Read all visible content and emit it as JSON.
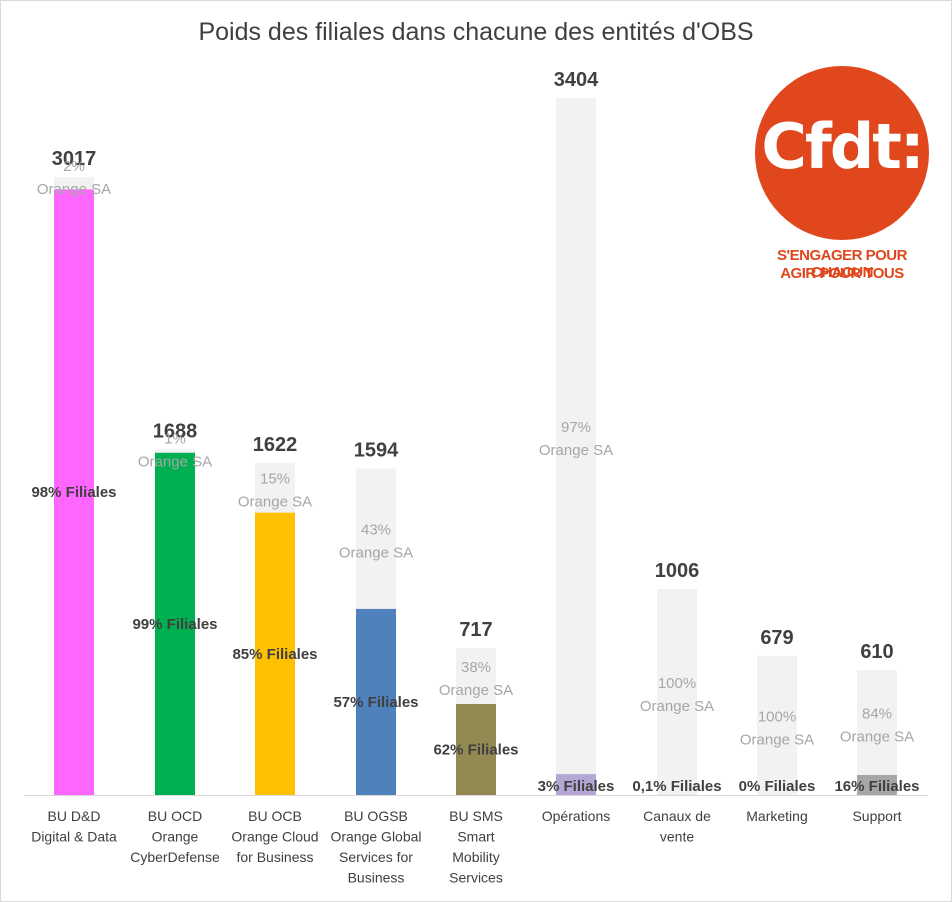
{
  "chart_data": {
    "type": "bar",
    "stacked": true,
    "title": "Poids des filiales dans chacune des entités d'OBS",
    "ylim": [
      0,
      3600
    ],
    "grid": false,
    "legend": "none",
    "bars": [
      {
        "category": [
          "BU D&D",
          "Digital & Data"
        ],
        "total": 3017,
        "total_label": "3017",
        "filiales_pct": 98,
        "filiales_label": "98% Filiales",
        "orange_label": [
          "2%",
          "Orange SA"
        ],
        "color": "#ff66ff"
      },
      {
        "category": [
          "BU OCD",
          "Orange",
          "CyberDefense"
        ],
        "total": 1688,
        "total_label": "1688",
        "filiales_pct": 99,
        "filiales_label": "99% Filiales",
        "orange_label": [
          "1%",
          "Orange SA"
        ],
        "color": "#00b050"
      },
      {
        "category": [
          "BU OCB",
          "Orange Cloud",
          "for Business"
        ],
        "total": 1622,
        "total_label": "1622",
        "filiales_pct": 85,
        "filiales_label": "85% Filiales",
        "orange_label": [
          "15%",
          "Orange SA"
        ],
        "color": "#ffc000"
      },
      {
        "category": [
          "BU OGSB",
          "Orange Global",
          "Services for",
          "Business"
        ],
        "total": 1594,
        "total_label": "1594",
        "filiales_pct": 57,
        "filiales_label": "57% Filiales",
        "orange_label": [
          "43%",
          "Orange SA"
        ],
        "color": "#4f81bd"
      },
      {
        "category": [
          "BU SMS",
          "Smart",
          "Mobility",
          "Services"
        ],
        "total": 717,
        "total_label": "717",
        "filiales_pct": 62,
        "filiales_label": "62% Filiales",
        "orange_label": [
          "38%",
          "Orange SA"
        ],
        "color": "#938953"
      },
      {
        "category": [
          "Opérations"
        ],
        "total": 3404,
        "total_label": "3404",
        "filiales_pct": 3,
        "filiales_label": "3% Filiales",
        "orange_label": [
          "97%",
          "Orange SA"
        ],
        "color": "#b4a7d6"
      },
      {
        "category": [
          "Canaux de",
          "vente"
        ],
        "total": 1006,
        "total_label": "1006",
        "filiales_pct": 0.1,
        "filiales_label": "0,1% Filiales",
        "orange_label": [
          "100%",
          "Orange SA"
        ],
        "color": "#bfbfbf"
      },
      {
        "category": [
          "Marketing"
        ],
        "total": 679,
        "total_label": "679",
        "filiales_pct": 0,
        "filiales_label": "0% Filiales",
        "orange_label": [
          "100%",
          "Orange SA"
        ],
        "color": "#bfbfbf"
      },
      {
        "category": [
          "Support"
        ],
        "total": 610,
        "total_label": "610",
        "filiales_pct": 16,
        "filiales_label": "16% Filiales",
        "orange_label": [
          "84%",
          "Orange SA"
        ],
        "color": "#a6a6a6"
      }
    ],
    "orange_sa_color": "#f2f2f2"
  },
  "logo": {
    "text": "Cfdt:",
    "slogan": [
      "S'ENGAGER POUR CHACUN",
      "AGIR POUR TOUS"
    ]
  }
}
